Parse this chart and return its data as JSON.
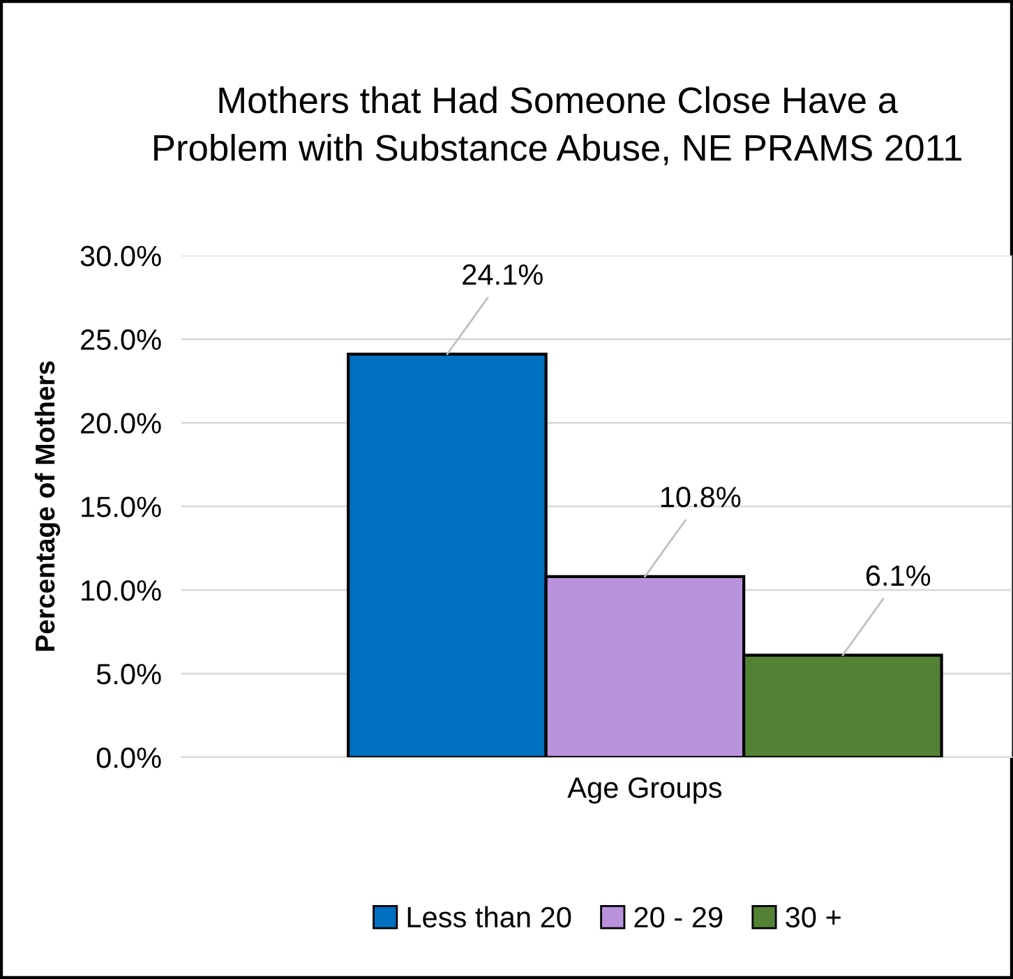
{
  "chart_data": {
    "type": "bar",
    "title": "Mothers that Had Someone Close Have a\nProblem with Substance Abuse, NE PRAMS 2011",
    "ylabel": "Percentage of Mothers",
    "categories": [
      "Age Groups"
    ],
    "series": [
      {
        "name": "Less than 20",
        "color": "#0070c0",
        "values": [
          24.1
        ],
        "value_labels": [
          "24.1%"
        ]
      },
      {
        "name": "20 - 29",
        "color": "#b992dc",
        "values": [
          10.8
        ],
        "value_labels": [
          "10.8%"
        ]
      },
      {
        "name": "30 +",
        "color": "#548235",
        "values": [
          6.1
        ],
        "value_labels": [
          "6.1%"
        ]
      }
    ],
    "ylim": [
      0,
      30
    ],
    "yticks": [
      {
        "value": 0,
        "label": "0.0%"
      },
      {
        "value": 5,
        "label": "5.0%"
      },
      {
        "value": 10,
        "label": "10.0%"
      },
      {
        "value": 15,
        "label": "15.0%"
      },
      {
        "value": 20,
        "label": "20.0%"
      },
      {
        "value": 25,
        "label": "25.0%"
      },
      {
        "value": 30,
        "label": "30.0%"
      }
    ],
    "grid": "y",
    "legend": "bottom"
  }
}
